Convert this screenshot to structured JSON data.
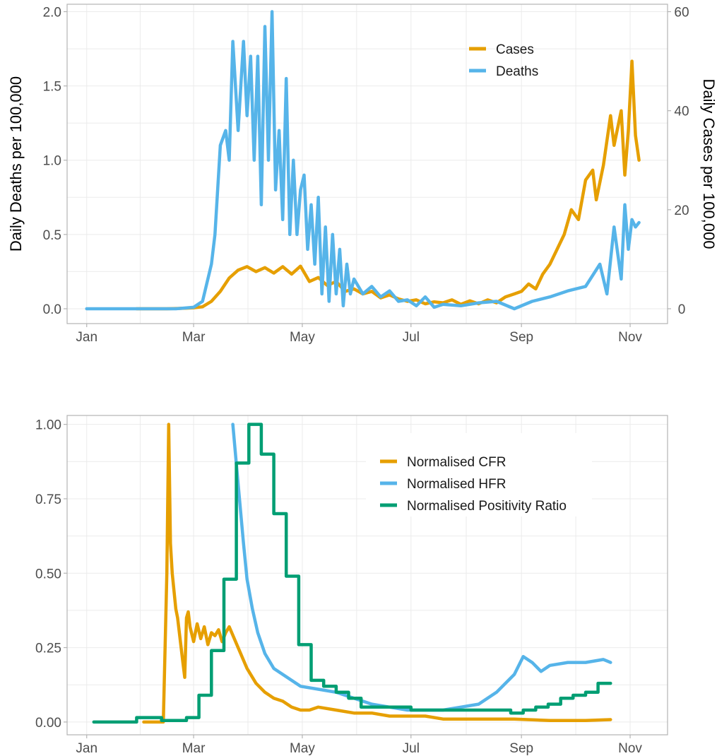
{
  "colors": {
    "cases": "#E69F00",
    "deaths": "#56B4E9",
    "cfr": "#E69F00",
    "hfr": "#56B4E9",
    "positivity": "#009E73"
  },
  "chart_data": [
    {
      "type": "line",
      "title": "",
      "xlabel": "",
      "ylabel": "Daily Deaths per 100,000",
      "y2label": "Daily Cases per 100,000",
      "x_unit": "days since Jan 1",
      "x_ticks": [
        "Jan",
        "Mar",
        "May",
        "Jul",
        "Sep",
        "Nov"
      ],
      "x_tick_values": [
        0,
        60,
        121,
        182,
        244,
        305
      ],
      "xlim": [
        -11,
        326
      ],
      "ylim": [
        -0.1,
        2.05
      ],
      "y_ticks": [
        "0.0",
        "0.5",
        "1.0",
        "1.5",
        "2.0"
      ],
      "y_tick_values": [
        0,
        0.5,
        1.0,
        1.5,
        2.0
      ],
      "y2lim": [
        -3,
        61.5
      ],
      "y2_ticks": [
        "0",
        "20",
        "40",
        "60"
      ],
      "y2_tick_values": [
        0,
        20,
        40,
        60
      ],
      "grid": true,
      "legend": "top-right",
      "series": [
        {
          "name": "Cases",
          "color_key": "cases",
          "axis": "right",
          "x": [
            28,
            45,
            55,
            60,
            65,
            70,
            75,
            80,
            85,
            90,
            95,
            100,
            105,
            110,
            115,
            120,
            125,
            130,
            135,
            140,
            145,
            150,
            155,
            160,
            165,
            170,
            175,
            180,
            185,
            190,
            195,
            200,
            205,
            210,
            215,
            220,
            225,
            230,
            235,
            240,
            244,
            248,
            252,
            256,
            260,
            264,
            268,
            272,
            276,
            280,
            284,
            286,
            290,
            294,
            296,
            300,
            302,
            304,
            306,
            308,
            310
          ],
          "y": [
            0,
            0,
            0.1,
            0.2,
            0.4,
            1.5,
            3.5,
            6.2,
            7.8,
            8.5,
            7.5,
            8.3,
            7.2,
            8.5,
            7.0,
            8.6,
            5.5,
            6.3,
            4.7,
            5.5,
            3.5,
            4.0,
            3.0,
            3.5,
            2.2,
            2.8,
            2.0,
            1.5,
            1.8,
            1.0,
            1.4,
            1.2,
            1.8,
            0.9,
            1.6,
            1.0,
            1.8,
            1.2,
            2.4,
            3.0,
            3.5,
            5.0,
            4.0,
            7.0,
            9.0,
            12.0,
            15.0,
            20.0,
            18.0,
            26.0,
            28.0,
            22.0,
            29.0,
            39.0,
            33.0,
            40.0,
            27.0,
            36.0,
            50.0,
            35.0,
            30.0
          ]
        },
        {
          "name": "Deaths",
          "color_key": "deaths",
          "axis": "left",
          "x": [
            0,
            50,
            60,
            65,
            70,
            72,
            75,
            78,
            80,
            82,
            85,
            88,
            90,
            92,
            94,
            96,
            98,
            100,
            102,
            104,
            106,
            108,
            110,
            112,
            114,
            116,
            118,
            120,
            122,
            124,
            126,
            128,
            130,
            132,
            134,
            136,
            138,
            140,
            142,
            144,
            146,
            148,
            150,
            155,
            160,
            165,
            170,
            175,
            180,
            185,
            190,
            195,
            200,
            210,
            220,
            230,
            240,
            250,
            260,
            270,
            280,
            288,
            292,
            296,
            300,
            302,
            304,
            306,
            308,
            310
          ],
          "y": [
            0,
            0,
            0.01,
            0.05,
            0.3,
            0.5,
            1.1,
            1.2,
            1.0,
            1.8,
            1.2,
            1.8,
            1.3,
            1.7,
            1.0,
            1.7,
            0.7,
            1.9,
            1.0,
            2.0,
            0.8,
            1.2,
            0.6,
            1.55,
            0.5,
            1.0,
            0.5,
            0.8,
            0.9,
            0.4,
            0.7,
            0.3,
            0.75,
            0.1,
            0.55,
            0.05,
            0.5,
            0.1,
            0.4,
            0.02,
            0.3,
            0.1,
            0.2,
            0.1,
            0.15,
            0.08,
            0.12,
            0.05,
            0.06,
            0.02,
            0.08,
            0.01,
            0.03,
            0.02,
            0.04,
            0.05,
            0.0,
            0.05,
            0.08,
            0.12,
            0.15,
            0.3,
            0.1,
            0.55,
            0.2,
            0.7,
            0.4,
            0.6,
            0.55,
            0.58
          ]
        }
      ]
    },
    {
      "type": "line",
      "title": "",
      "xlabel": "",
      "ylabel": "",
      "x_unit": "days since Jan 1",
      "x_ticks": [
        "Jan",
        "Mar",
        "May",
        "Jul",
        "Sep",
        "Nov"
      ],
      "x_tick_values": [
        0,
        60,
        121,
        182,
        244,
        305
      ],
      "xlim": [
        -11,
        326
      ],
      "ylim": [
        -0.043,
        1.03
      ],
      "y_ticks": [
        "0.00",
        "0.25",
        "0.50",
        "0.75",
        "1.00"
      ],
      "y_tick_values": [
        0,
        0.25,
        0.5,
        0.75,
        1.0
      ],
      "grid": true,
      "legend": "top-right",
      "series": [
        {
          "name": "Normalised CFR",
          "color_key": "cfr",
          "x": [
            32,
            43,
            45,
            46,
            47,
            48,
            50,
            51,
            52,
            54,
            55,
            56,
            57,
            58,
            60,
            62,
            64,
            66,
            68,
            70,
            72,
            74,
            76,
            78,
            80,
            85,
            90,
            95,
            100,
            105,
            110,
            115,
            120,
            125,
            130,
            140,
            150,
            160,
            170,
            180,
            190,
            200,
            210,
            220,
            240,
            260,
            280,
            294
          ],
          "y": [
            0,
            0,
            0.5,
            1.0,
            0.6,
            0.5,
            0.38,
            0.35,
            0.3,
            0.2,
            0.15,
            0.35,
            0.37,
            0.32,
            0.27,
            0.33,
            0.28,
            0.32,
            0.26,
            0.3,
            0.29,
            0.31,
            0.27,
            0.3,
            0.32,
            0.25,
            0.18,
            0.13,
            0.1,
            0.08,
            0.07,
            0.05,
            0.04,
            0.04,
            0.05,
            0.04,
            0.03,
            0.03,
            0.02,
            0.02,
            0.02,
            0.01,
            0.01,
            0.01,
            0.01,
            0.005,
            0.005,
            0.008
          ]
        },
        {
          "name": "Normalised HFR",
          "color_key": "hfr",
          "x": [
            82,
            85,
            88,
            90,
            93,
            96,
            100,
            105,
            110,
            115,
            120,
            130,
            140,
            150,
            160,
            170,
            180,
            190,
            200,
            210,
            220,
            230,
            240,
            245,
            250,
            255,
            260,
            270,
            280,
            290,
            294
          ],
          "y": [
            1.0,
            0.8,
            0.6,
            0.48,
            0.38,
            0.3,
            0.23,
            0.18,
            0.16,
            0.14,
            0.12,
            0.11,
            0.1,
            0.08,
            0.06,
            0.05,
            0.04,
            0.04,
            0.04,
            0.05,
            0.06,
            0.1,
            0.16,
            0.22,
            0.2,
            0.17,
            0.19,
            0.2,
            0.2,
            0.21,
            0.2
          ]
        },
        {
          "name": "Normalised Positivity Ratio",
          "color_key": "positivity",
          "x": [
            4,
            28,
            28,
            42,
            42,
            56,
            56,
            63,
            63,
            70,
            70,
            77,
            77,
            84,
            84,
            91,
            91,
            98,
            98,
            105,
            105,
            112,
            112,
            119,
            119,
            126,
            126,
            133,
            133,
            140,
            140,
            147,
            147,
            154,
            154,
            182,
            182,
            238,
            238,
            245,
            245,
            252,
            252,
            259,
            259,
            266,
            266,
            273,
            273,
            280,
            280,
            287,
            287,
            294
          ],
          "y": [
            0,
            0,
            0.015,
            0.015,
            0.005,
            0.005,
            0.015,
            0.015,
            0.09,
            0.09,
            0.24,
            0.24,
            0.48,
            0.48,
            0.87,
            0.87,
            1.0,
            1.0,
            0.9,
            0.9,
            0.7,
            0.7,
            0.49,
            0.49,
            0.26,
            0.26,
            0.14,
            0.14,
            0.12,
            0.12,
            0.1,
            0.1,
            0.08,
            0.08,
            0.05,
            0.05,
            0.04,
            0.04,
            0.03,
            0.03,
            0.04,
            0.04,
            0.05,
            0.05,
            0.06,
            0.06,
            0.08,
            0.08,
            0.09,
            0.09,
            0.1,
            0.1,
            0.13,
            0.13
          ]
        }
      ]
    }
  ]
}
